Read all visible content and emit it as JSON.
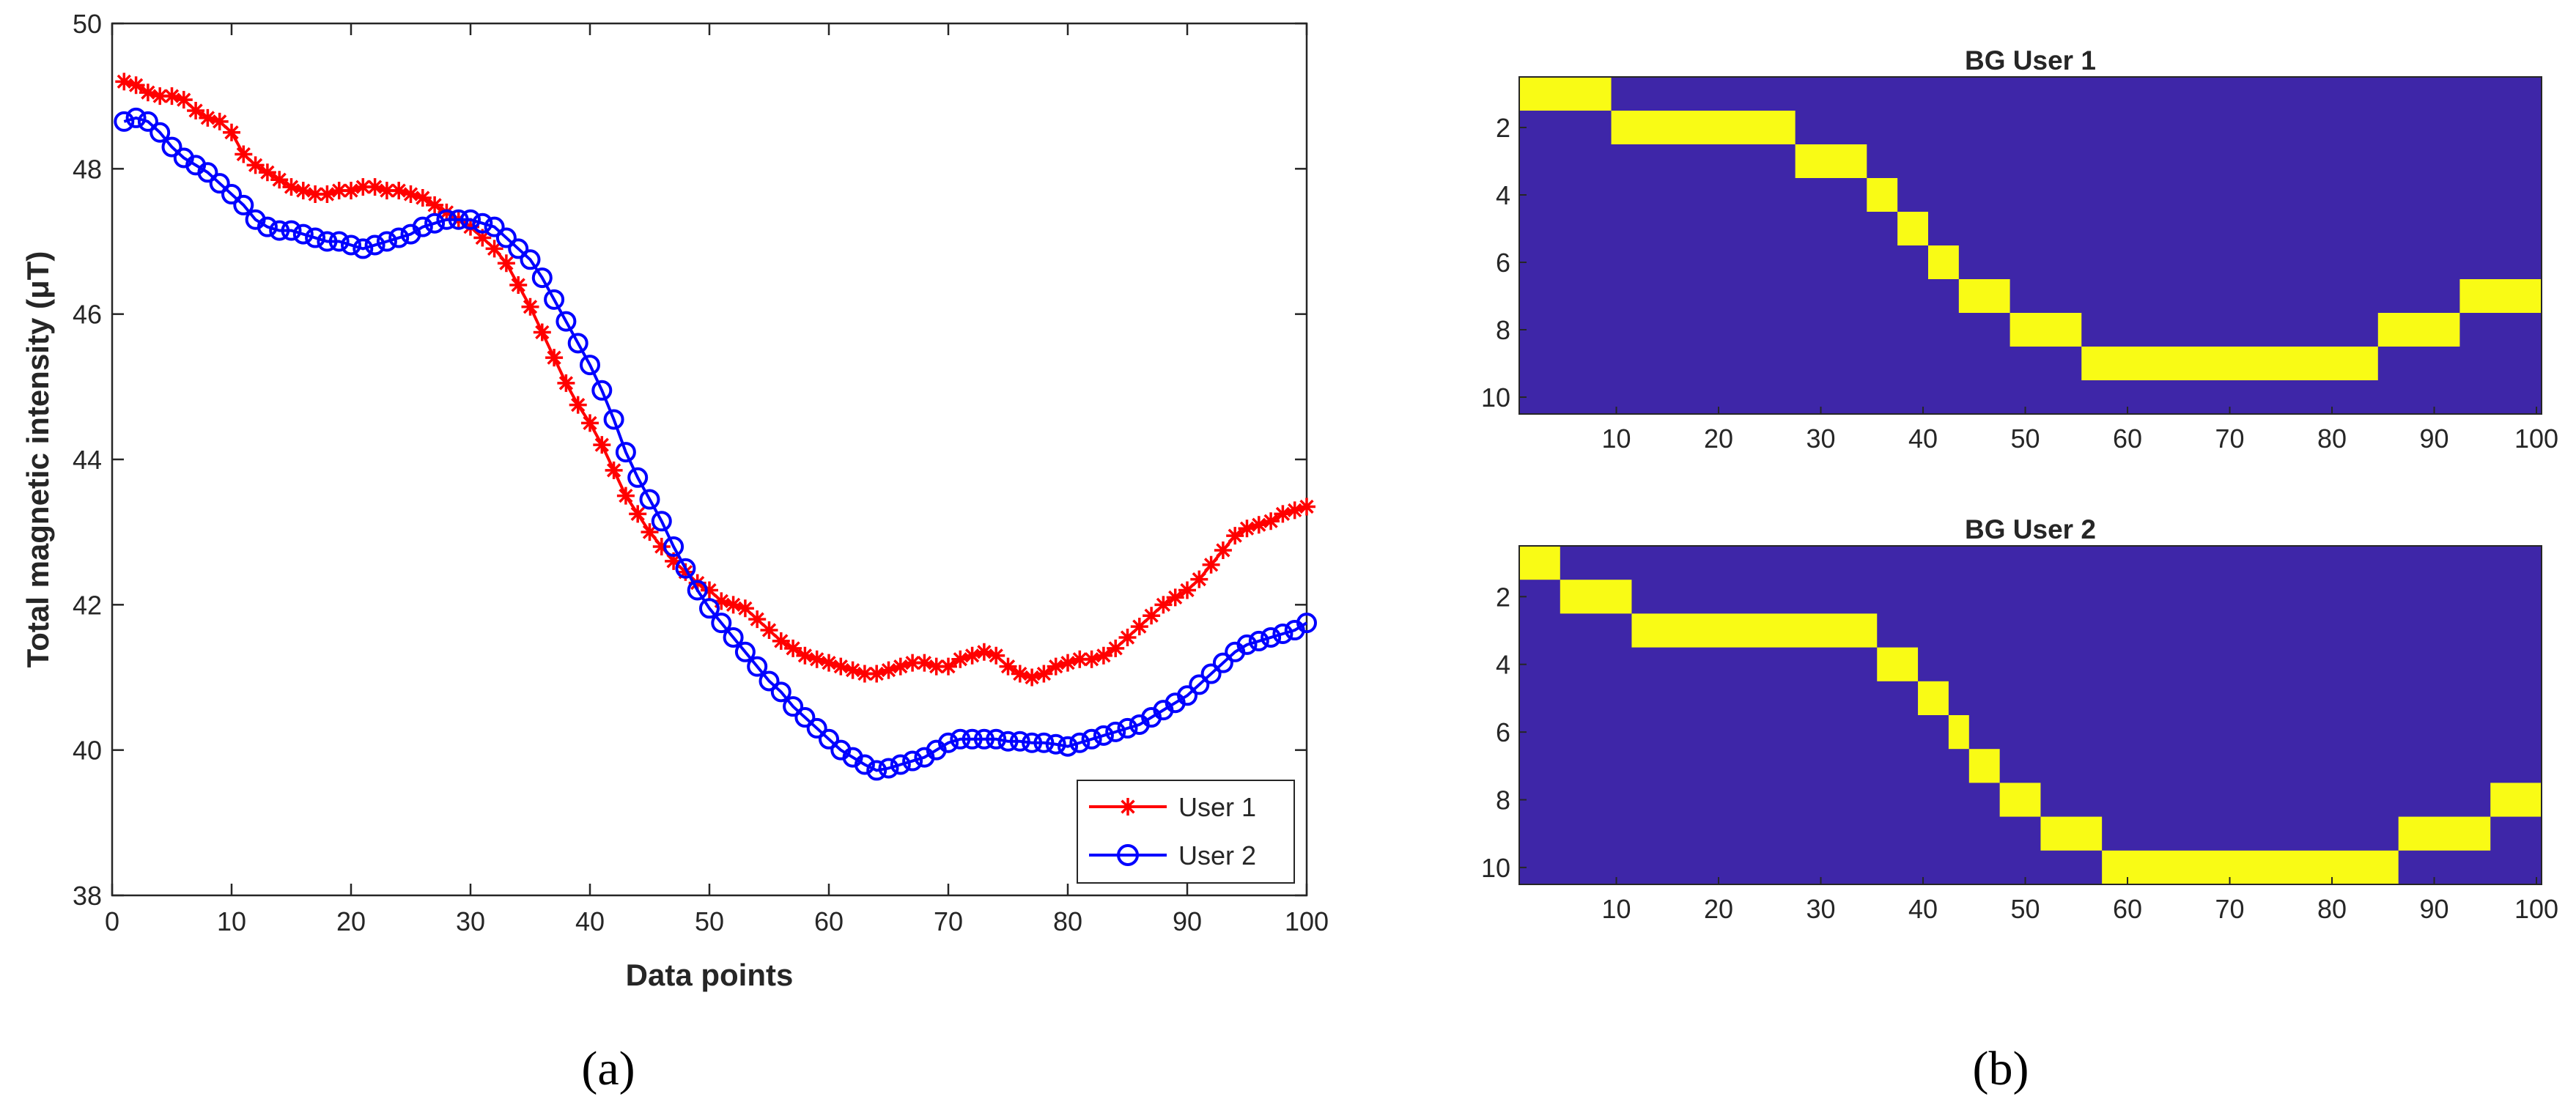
{
  "chart_data": [
    {
      "type": "line",
      "panel": "(a)",
      "xlabel": "Data points",
      "ylabel": "Total magnetic intensity (μT)",
      "xlim": [
        0,
        100
      ],
      "ylim": [
        38,
        50
      ],
      "xticks": [
        0,
        10,
        20,
        30,
        40,
        50,
        60,
        70,
        80,
        90,
        100
      ],
      "yticks": [
        38,
        40,
        42,
        44,
        46,
        48,
        50
      ],
      "grid": false,
      "legend_position": "bottom-right",
      "x": [
        1,
        2,
        3,
        4,
        5,
        6,
        7,
        8,
        9,
        10,
        11,
        12,
        13,
        14,
        15,
        16,
        17,
        18,
        19,
        20,
        21,
        22,
        23,
        24,
        25,
        26,
        27,
        28,
        29,
        30,
        31,
        32,
        33,
        34,
        35,
        36,
        37,
        38,
        39,
        40,
        41,
        42,
        43,
        44,
        45,
        46,
        47,
        48,
        49,
        50,
        51,
        52,
        53,
        54,
        55,
        56,
        57,
        58,
        59,
        60,
        61,
        62,
        63,
        64,
        65,
        66,
        67,
        68,
        69,
        70,
        71,
        72,
        73,
        74,
        75,
        76,
        77,
        78,
        79,
        80,
        81,
        82,
        83,
        84,
        85,
        86,
        87,
        88,
        89,
        90,
        91,
        92,
        93,
        94,
        95,
        96,
        97,
        98,
        99,
        100
      ],
      "series": [
        {
          "name": "User 1",
          "color": "#ff0000",
          "marker": "asterisk",
          "values": [
            49.2,
            49.15,
            49.05,
            49.0,
            49.0,
            48.95,
            48.8,
            48.7,
            48.65,
            48.5,
            48.2,
            48.05,
            47.95,
            47.85,
            47.75,
            47.7,
            47.65,
            47.65,
            47.7,
            47.7,
            47.75,
            47.75,
            47.7,
            47.7,
            47.65,
            47.6,
            47.5,
            47.4,
            47.3,
            47.2,
            47.05,
            46.9,
            46.7,
            46.4,
            46.1,
            45.75,
            45.4,
            45.05,
            44.75,
            44.5,
            44.2,
            43.85,
            43.5,
            43.25,
            43.0,
            42.8,
            42.6,
            42.45,
            42.3,
            42.2,
            42.05,
            42.0,
            41.95,
            41.8,
            41.65,
            41.5,
            41.4,
            41.3,
            41.25,
            41.2,
            41.15,
            41.1,
            41.05,
            41.05,
            41.1,
            41.15,
            41.2,
            41.2,
            41.15,
            41.15,
            41.25,
            41.3,
            41.35,
            41.3,
            41.15,
            41.05,
            41.0,
            41.05,
            41.15,
            41.2,
            41.25,
            41.25,
            41.3,
            41.4,
            41.55,
            41.7,
            41.85,
            42.0,
            42.1,
            42.2,
            42.35,
            42.55,
            42.75,
            42.95,
            43.05,
            43.1,
            43.15,
            43.25,
            43.3,
            43.35
          ]
        },
        {
          "name": "User 2",
          "color": "#0000ff",
          "marker": "circle",
          "values": [
            48.65,
            48.7,
            48.65,
            48.5,
            48.3,
            48.15,
            48.05,
            47.95,
            47.8,
            47.65,
            47.5,
            47.3,
            47.2,
            47.15,
            47.15,
            47.1,
            47.05,
            47.0,
            47.0,
            46.95,
            46.9,
            46.95,
            47.0,
            47.05,
            47.1,
            47.2,
            47.25,
            47.3,
            47.3,
            47.3,
            47.25,
            47.2,
            47.05,
            46.9,
            46.75,
            46.5,
            46.2,
            45.9,
            45.6,
            45.3,
            44.95,
            44.55,
            44.1,
            43.75,
            43.45,
            43.15,
            42.8,
            42.5,
            42.2,
            41.95,
            41.75,
            41.55,
            41.35,
            41.15,
            40.95,
            40.8,
            40.6,
            40.45,
            40.3,
            40.15,
            40.0,
            39.9,
            39.8,
            39.72,
            39.75,
            39.8,
            39.85,
            39.9,
            40.0,
            40.1,
            40.15,
            40.15,
            40.15,
            40.15,
            40.12,
            40.12,
            40.1,
            40.1,
            40.08,
            40.05,
            40.1,
            40.15,
            40.2,
            40.25,
            40.3,
            40.35,
            40.45,
            40.55,
            40.65,
            40.75,
            40.9,
            41.05,
            41.2,
            41.35,
            41.45,
            41.5,
            41.55,
            41.6,
            41.65,
            41.75
          ]
        }
      ]
    },
    {
      "type": "heatmap",
      "panel": "(b)",
      "title": "BG User 1",
      "xlim": [
        0.5,
        100.5
      ],
      "ylim": [
        10.5,
        0.5
      ],
      "xticks": [
        10,
        20,
        30,
        40,
        50,
        60,
        70,
        80,
        90,
        100
      ],
      "yticks": [
        2,
        4,
        6,
        8,
        10
      ],
      "colors": {
        "background": "#3e26a8",
        "highlight": "#f9fb15"
      },
      "segments": [
        {
          "row": 1,
          "from": 1,
          "to": 9
        },
        {
          "row": 2,
          "from": 10,
          "to": 27
        },
        {
          "row": 3,
          "from": 28,
          "to": 34
        },
        {
          "row": 4,
          "from": 35,
          "to": 37
        },
        {
          "row": 5,
          "from": 38,
          "to": 40
        },
        {
          "row": 6,
          "from": 41,
          "to": 43
        },
        {
          "row": 7,
          "from": 44,
          "to": 48
        },
        {
          "row": 8,
          "from": 49,
          "to": 55
        },
        {
          "row": 9,
          "from": 56,
          "to": 84
        },
        {
          "row": 8,
          "from": 85,
          "to": 92
        },
        {
          "row": 7,
          "from": 93,
          "to": 100
        }
      ]
    },
    {
      "type": "heatmap",
      "panel": "(b)",
      "title": "BG User 2",
      "xlim": [
        0.5,
        100.5
      ],
      "ylim": [
        10.5,
        0.5
      ],
      "xticks": [
        10,
        20,
        30,
        40,
        50,
        60,
        70,
        80,
        90,
        100
      ],
      "yticks": [
        2,
        4,
        6,
        8,
        10
      ],
      "colors": {
        "background": "#3e26a8",
        "highlight": "#f9fb15"
      },
      "segments": [
        {
          "row": 1,
          "from": 1,
          "to": 4
        },
        {
          "row": 2,
          "from": 5,
          "to": 11
        },
        {
          "row": 3,
          "from": 12,
          "to": 35
        },
        {
          "row": 4,
          "from": 36,
          "to": 39
        },
        {
          "row": 5,
          "from": 40,
          "to": 42
        },
        {
          "row": 6,
          "from": 43,
          "to": 44
        },
        {
          "row": 7,
          "from": 45,
          "to": 47
        },
        {
          "row": 8,
          "from": 48,
          "to": 51
        },
        {
          "row": 9,
          "from": 52,
          "to": 57
        },
        {
          "row": 10,
          "from": 58,
          "to": 86
        },
        {
          "row": 9,
          "from": 87,
          "to": 95
        },
        {
          "row": 8,
          "from": 96,
          "to": 100
        }
      ]
    }
  ],
  "captions": {
    "a": "(a)",
    "b": "(b)"
  }
}
